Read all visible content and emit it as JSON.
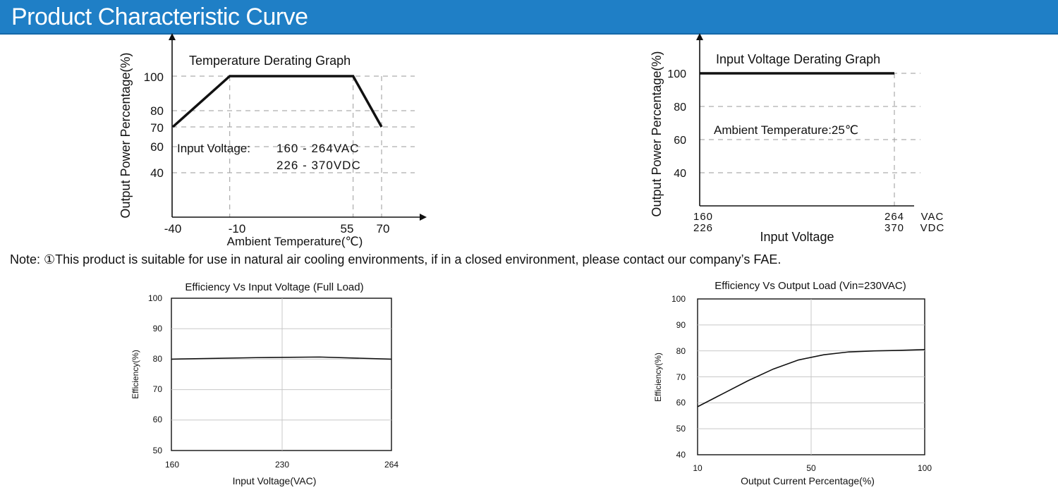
{
  "header": {
    "title": "Product Characteristic Curve"
  },
  "note": "Note: ①This product is suitable for use in natural air cooling environments, if in a closed environment, please contact our company’s FAE.",
  "chart_data": [
    {
      "type": "line",
      "title": "Temperature Derating Graph",
      "xlabel": "Ambient Temperature(℃)",
      "ylabel": "Output Power Percentage(%)",
      "xticks": [
        "-40",
        "-10",
        "55",
        "70"
      ],
      "yticks": [
        "100",
        "80",
        "70",
        "60",
        "40"
      ],
      "annotation_label": "Input Voltage:",
      "annotation_lines": [
        "160 - 264VAC",
        "226 - 370VDC"
      ],
      "series": [
        {
          "x": [
            -40,
            -10,
            55,
            70
          ],
          "y": [
            70,
            100,
            100,
            70
          ]
        }
      ],
      "grid": "dashed"
    },
    {
      "type": "line",
      "title": "Input Voltage Derating Graph",
      "xlabel": "Input Voltage",
      "ylabel": "Output Power Percentage(%)",
      "xticks_vac": [
        "160",
        "264",
        "VAC"
      ],
      "xticks_vdc": [
        "226",
        "370",
        "VDC"
      ],
      "yticks": [
        "100",
        "80",
        "60",
        "40"
      ],
      "annotation": "Ambient Temperature:25℃",
      "series": [
        {
          "x": [
            160,
            264
          ],
          "y": [
            100,
            100
          ]
        }
      ],
      "grid": "dashed"
    },
    {
      "type": "line",
      "title": "Efficiency Vs Input Voltage (Full Load)",
      "xlabel": "Input Voltage(VAC)",
      "ylabel": "Efficiency(%)",
      "xticks": [
        "160",
        "230",
        "264"
      ],
      "yticks": [
        "100",
        "90",
        "80",
        "70",
        "60",
        "50"
      ],
      "ylim": [
        50,
        100
      ],
      "series": [
        {
          "x": [
            160,
            200,
            230,
            264
          ],
          "y": [
            80,
            80.5,
            80.7,
            80
          ]
        }
      ],
      "grid": "solid"
    },
    {
      "type": "line",
      "title": "Efficiency Vs Output Load (Vin=230VAC)",
      "xlabel": "Output Current Percentage(%)",
      "ylabel": "Efficiency(%)",
      "xticks": [
        "10",
        "50",
        "100"
      ],
      "yticks": [
        "100",
        "90",
        "80",
        "70",
        "60",
        "50",
        "40"
      ],
      "ylim": [
        40,
        100
      ],
      "series": [
        {
          "x": [
            10,
            20,
            30,
            40,
            50,
            60,
            70,
            80,
            90,
            100
          ],
          "y": [
            58.5,
            63.5,
            68.5,
            73,
            76.5,
            78.5,
            79.6,
            80,
            80.2,
            80.5
          ]
        }
      ],
      "grid": "solid"
    }
  ]
}
